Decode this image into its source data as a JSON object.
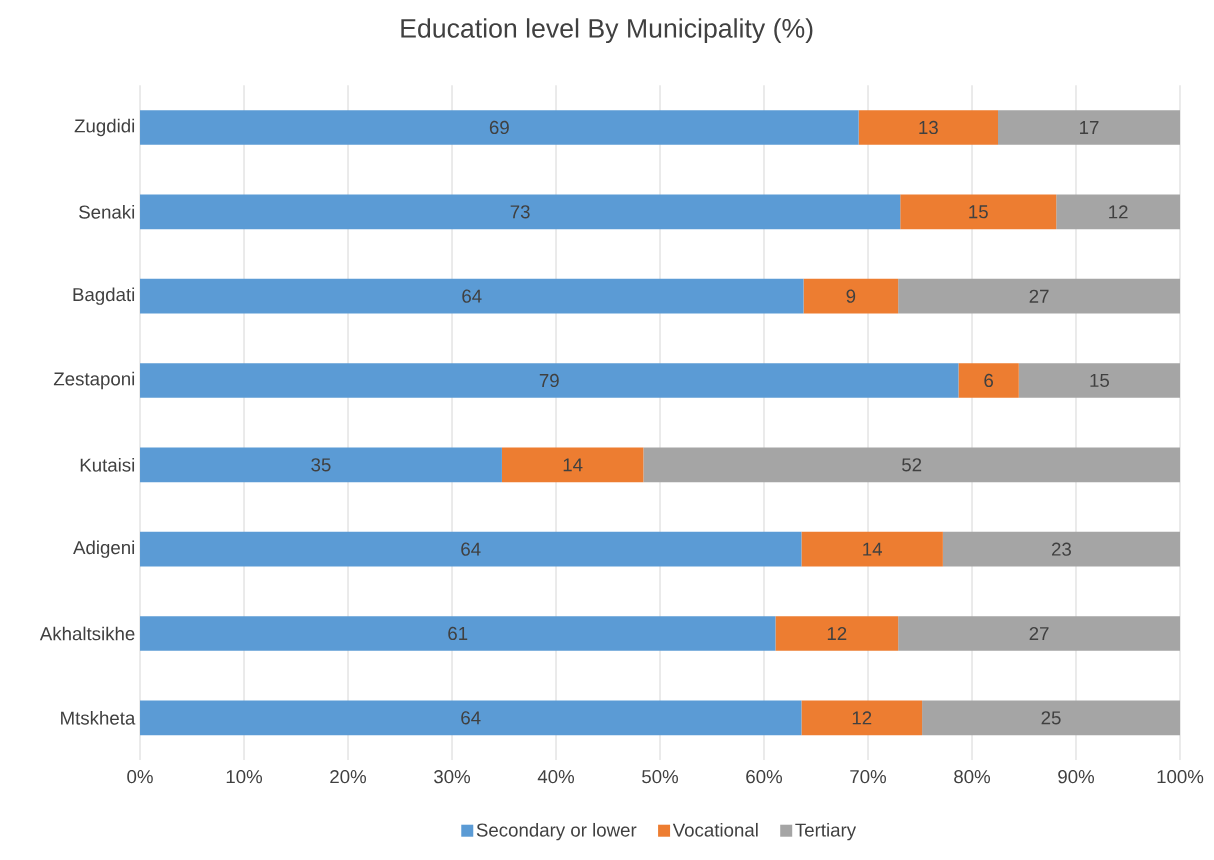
{
  "chart_data": {
    "type": "bar",
    "orientation": "horizontal",
    "stacked": true,
    "title": "Education level By Municipality (%)",
    "categories": [
      "Zugdidi",
      "Senaki",
      "Bagdati",
      "Zestaponi",
      "Kutaisi",
      "Adigeni",
      "Akhaltsikhe",
      "Mtskheta"
    ],
    "series": [
      {
        "name": "Secondary or lower",
        "color": "#5b9bd5",
        "values": [
          69.1,
          73.1,
          63.8,
          78.7,
          34.8,
          63.6,
          61.1,
          63.6
        ],
        "value_labels": [
          "69",
          "73",
          "64",
          "79",
          "35",
          "64",
          "61",
          "64"
        ]
      },
      {
        "name": "Vocational",
        "color": "#ed7d31",
        "values": [
          13.4,
          15.0,
          9.1,
          5.8,
          13.6,
          13.6,
          11.8,
          11.6
        ],
        "value_labels": [
          "13",
          "15",
          "9",
          "6",
          "14",
          "14",
          "12",
          "12"
        ]
      },
      {
        "name": "Tertiary",
        "color": "#a5a5a5",
        "values": [
          17.5,
          11.9,
          27.1,
          15.5,
          51.6,
          22.8,
          27.1,
          24.8
        ],
        "value_labels": [
          "17",
          "12",
          "27",
          "15",
          "52",
          "23",
          "27",
          "25"
        ]
      }
    ],
    "xlim": [
      0,
      100
    ],
    "xticks": [
      {
        "value": 0,
        "label": "0%"
      },
      {
        "value": 10,
        "label": "10%"
      },
      {
        "value": 20,
        "label": "20%"
      },
      {
        "value": 30,
        "label": "30%"
      },
      {
        "value": 40,
        "label": "40%"
      },
      {
        "value": 50,
        "label": "50%"
      },
      {
        "value": 60,
        "label": "60%"
      },
      {
        "value": 70,
        "label": "70%"
      },
      {
        "value": 80,
        "label": "80%"
      },
      {
        "value": 90,
        "label": "90%"
      },
      {
        "value": 100,
        "label": "100%"
      }
    ],
    "grid": "x",
    "legend": "bottom"
  }
}
